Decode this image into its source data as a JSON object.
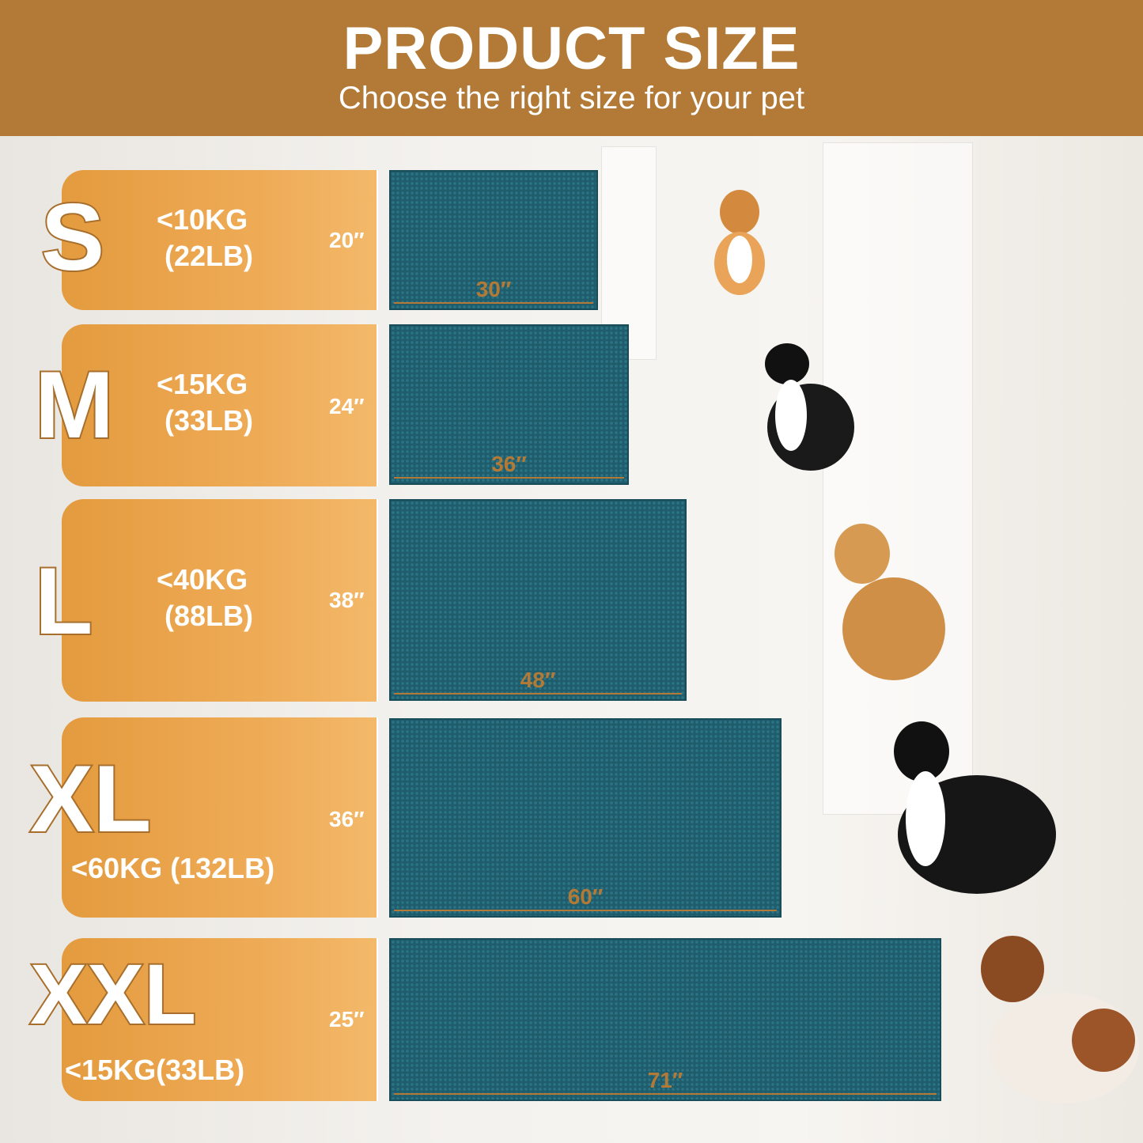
{
  "header": {
    "title": "PRODUCT SIZE",
    "subtitle": "Choose the right size for your pet"
  },
  "colors": {
    "header": "#b27a36",
    "panel": "#eeaa55",
    "mat": "#1f5d6c"
  },
  "sizes": [
    {
      "size": "S",
      "weight_kg": "<10KG",
      "weight_lb": "(22LB)",
      "height": "20″",
      "width": "30″",
      "dog": "corgi"
    },
    {
      "size": "M",
      "weight_kg": "<15KG",
      "weight_lb": "(33LB)",
      "height": "24″",
      "width": "36″",
      "dog": "border-collie"
    },
    {
      "size": "L",
      "weight_kg": "<40KG",
      "weight_lb": "(88LB)",
      "height": "38″",
      "width": "48″",
      "dog": "golden-retriever"
    },
    {
      "size": "XL",
      "weight": "<60KG (132LB)",
      "height": "36″",
      "width": "60″",
      "dog": "bernese-mountain-dog"
    },
    {
      "size": "XXL",
      "weight": "<15KG(33LB)",
      "height": "25″",
      "width": "71″",
      "dog": "saint-bernard"
    }
  ]
}
